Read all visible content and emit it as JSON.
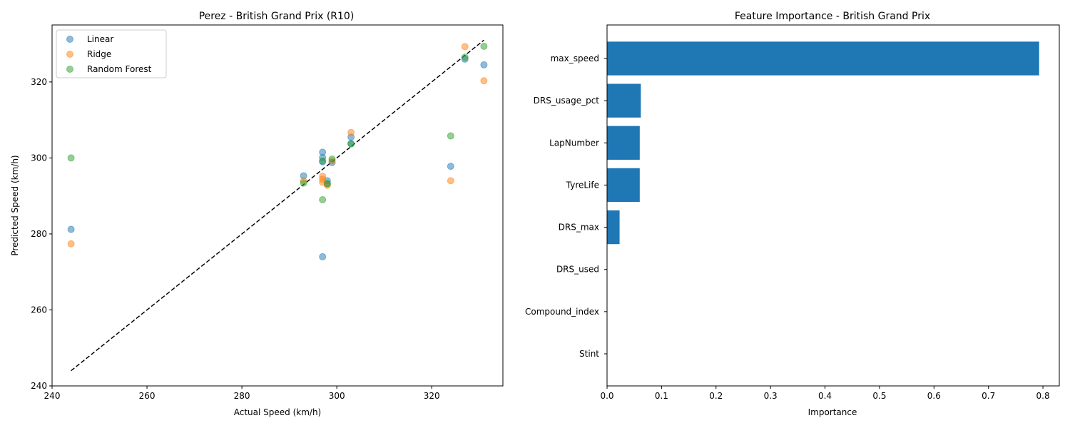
{
  "chart_data": [
    {
      "type": "scatter",
      "title": "Perez - British Grand Prix (R10)",
      "xlabel": "Actual Speed (km/h)",
      "ylabel": "Predicted Speed (km/h)",
      "xlim": [
        240,
        335
      ],
      "ylim": [
        240,
        335
      ],
      "xticks": [
        240,
        260,
        280,
        300,
        320
      ],
      "yticks": [
        240,
        260,
        280,
        300,
        320
      ],
      "legend_placement": "upper-left",
      "reference_line": {
        "style": "dashed",
        "color": "#000000",
        "from": [
          244,
          244
        ],
        "to": [
          331,
          331
        ]
      },
      "series": [
        {
          "name": "Linear",
          "color": "#1f77b4",
          "points": [
            [
              244,
              281.2
            ],
            [
              293,
              295.3
            ],
            [
              297,
              301.5
            ],
            [
              297,
              300.1
            ],
            [
              297,
              299.0
            ],
            [
              297,
              274.0
            ],
            [
              298,
              294.0
            ],
            [
              298,
              293.2
            ],
            [
              299,
              298.8
            ],
            [
              303,
              305.5
            ],
            [
              303,
              303.8
            ],
            [
              324,
              297.8
            ],
            [
              327,
              326.0
            ],
            [
              331,
              324.5
            ]
          ]
        },
        {
          "name": "Ridge",
          "color": "#ff7f0e",
          "points": [
            [
              244,
              277.4
            ],
            [
              293,
              294.0
            ],
            [
              297,
              295.2
            ],
            [
              297,
              294.4
            ],
            [
              297,
              293.6
            ],
            [
              298,
              292.8
            ],
            [
              299,
              299.2
            ],
            [
              303,
              306.7
            ],
            [
              324,
              294.0
            ],
            [
              327,
              329.3
            ],
            [
              331,
              320.3
            ]
          ]
        },
        {
          "name": "Random Forest",
          "color": "#2ca02c",
          "points": [
            [
              244,
              300.0
            ],
            [
              293,
              293.4
            ],
            [
              297,
              299.2
            ],
            [
              297,
              289.0
            ],
            [
              298,
              293.2
            ],
            [
              299,
              299.7
            ],
            [
              303,
              303.7
            ],
            [
              324,
              305.8
            ],
            [
              327,
              326.5
            ],
            [
              331,
              329.4
            ]
          ]
        }
      ]
    },
    {
      "type": "bar",
      "orientation": "horizontal",
      "title": "Feature Importance - British Grand Prix",
      "xlabel": "Importance",
      "ylabel": "",
      "xlim": [
        0,
        0.83
      ],
      "xticks": [
        0.0,
        0.1,
        0.2,
        0.3,
        0.4,
        0.5,
        0.6,
        0.7,
        0.8
      ],
      "color": "#1f77b4",
      "categories": [
        "max_speed",
        "DRS_usage_pct",
        "LapNumber",
        "TyreLife",
        "DRS_max",
        "DRS_used",
        "Compound_index",
        "Stint"
      ],
      "values": [
        0.793,
        0.062,
        0.06,
        0.06,
        0.023,
        0.0,
        0.0,
        0.0
      ]
    }
  ]
}
